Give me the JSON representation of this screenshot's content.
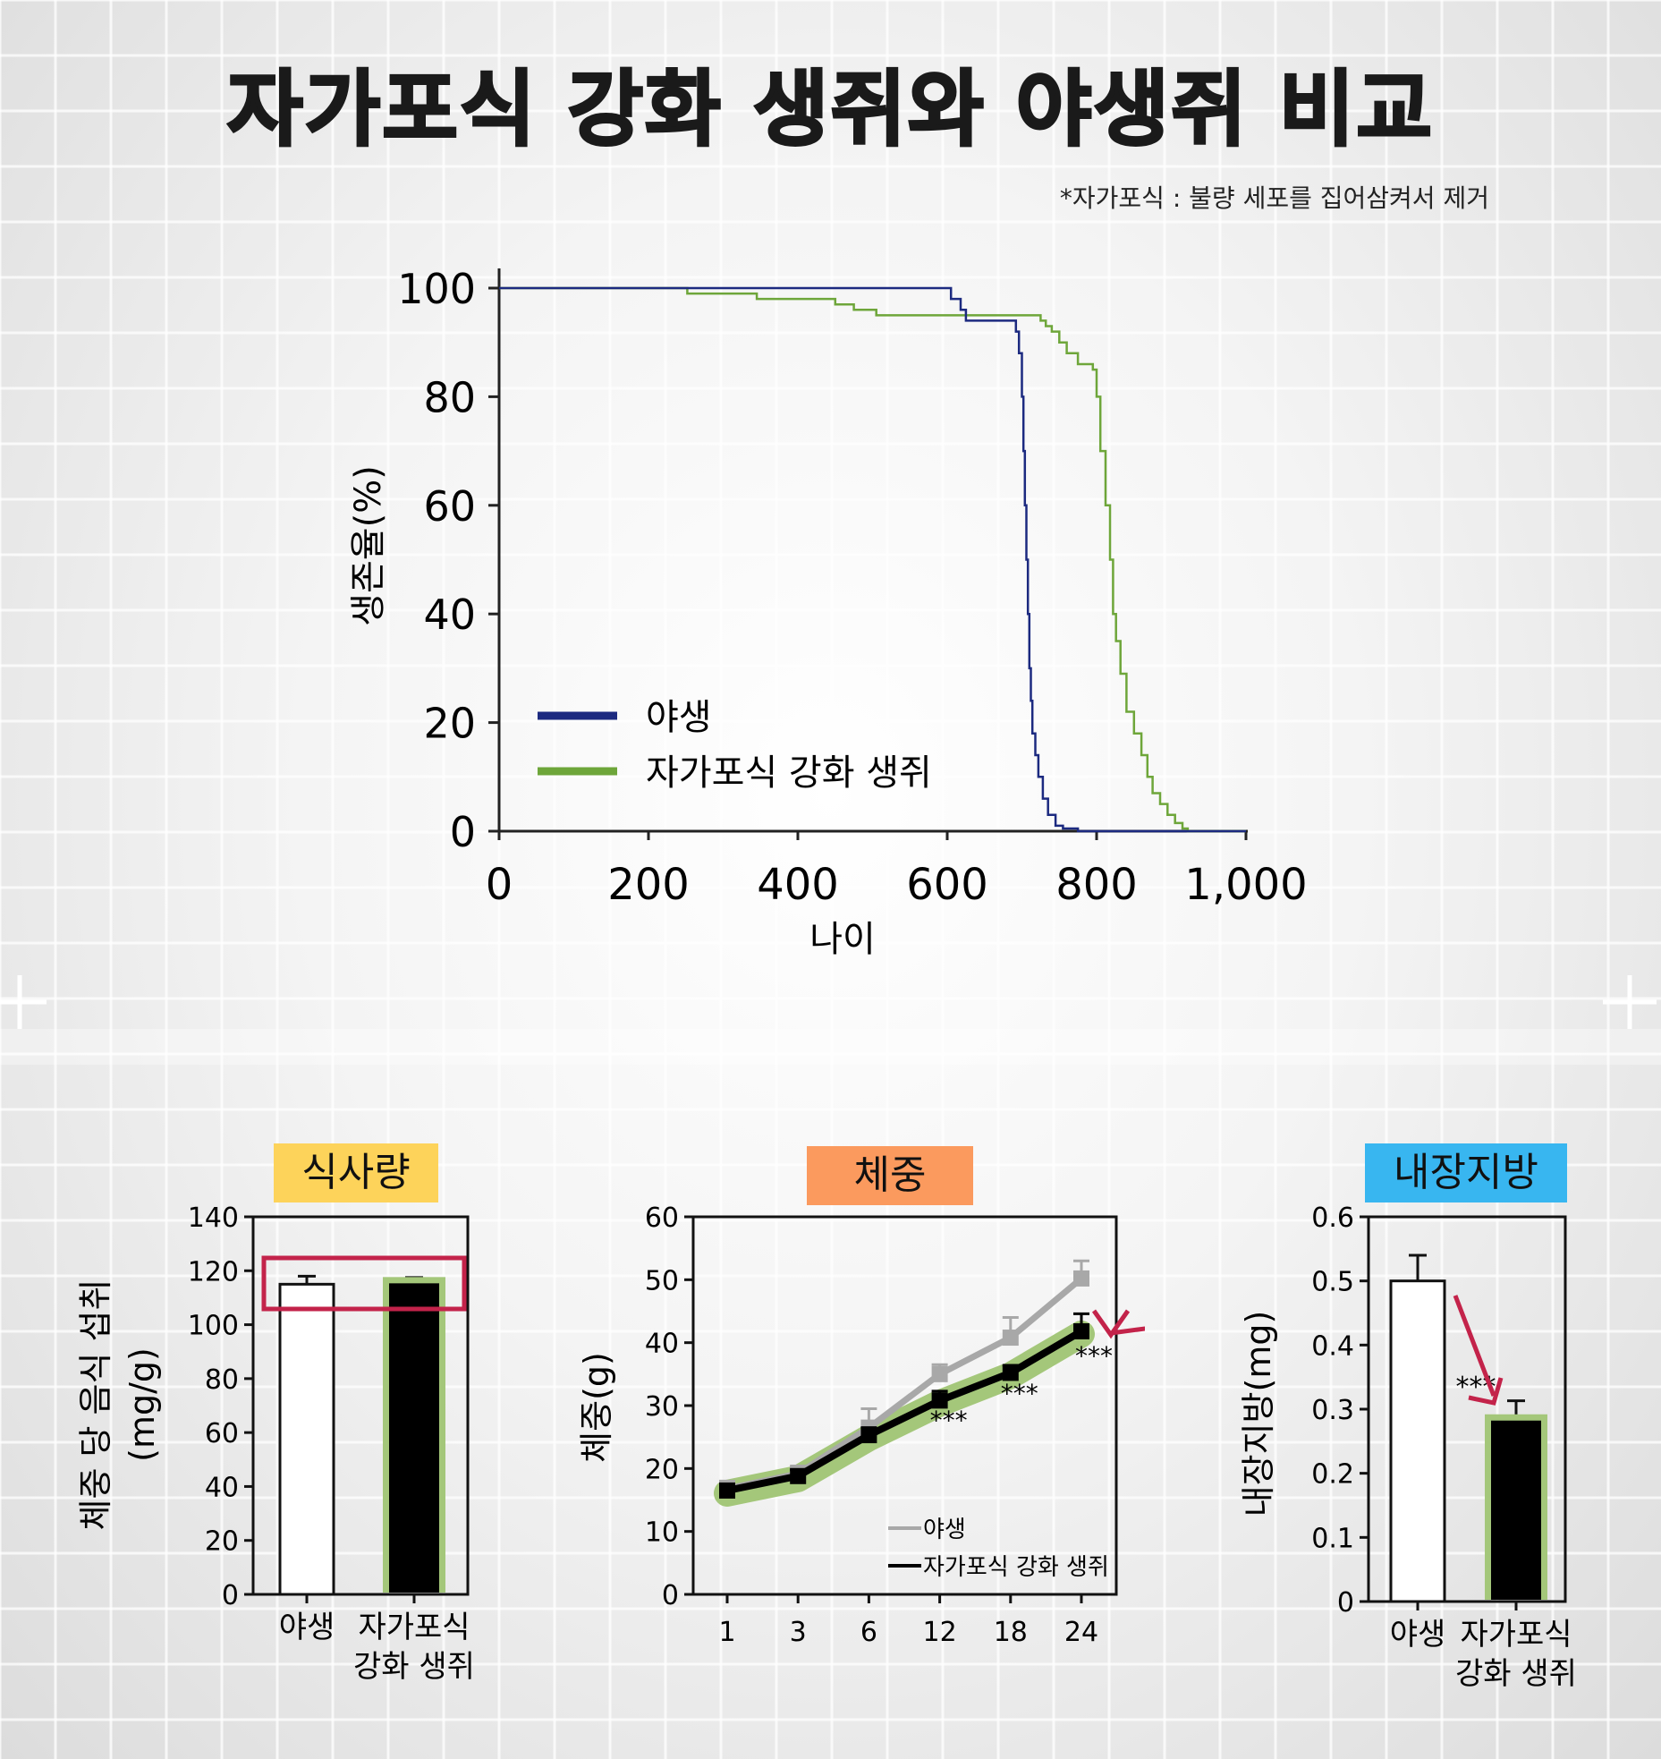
{
  "title": "자가포식 강화 생쥐와 야생쥐 비교",
  "footnote": "*자가포식 : 불량 세포를 집어삼켜서 제거",
  "colors": {
    "wild": "#1c2a80",
    "autophagy": "#6ea63a",
    "highlight_green": "#a4c77a",
    "arrow_red": "#c3234a",
    "label_food": "#fdd35a",
    "label_weight": "#fb9a5e",
    "label_fat": "#38b6f0"
  },
  "chart_data": [
    {
      "id": "survival",
      "type": "line",
      "xlabel": "나이",
      "ylabel": "생존율(%)",
      "xlim": [
        0,
        1000
      ],
      "ylim": [
        0,
        100
      ],
      "x_ticks": [
        "0",
        "200",
        "400",
        "600",
        "800",
        "1,000"
      ],
      "y_ticks": [
        "0",
        "20",
        "40",
        "60",
        "80",
        "100"
      ],
      "legend_position": "bottom-left",
      "series": [
        {
          "name": "야생",
          "color_key": "wild",
          "points": [
            [
              0,
              100
            ],
            [
              600,
              100
            ],
            [
              605,
              98
            ],
            [
              618,
              96
            ],
            [
              625,
              94
            ],
            [
              688,
              94
            ],
            [
              692,
              92
            ],
            [
              696,
              88
            ],
            [
              700,
              80
            ],
            [
              702,
              70
            ],
            [
              704,
              60
            ],
            [
              706,
              50
            ],
            [
              708,
              40
            ],
            [
              710,
              30
            ],
            [
              712,
              24
            ],
            [
              714,
              18
            ],
            [
              718,
              14
            ],
            [
              722,
              10
            ],
            [
              728,
              6
            ],
            [
              735,
              3
            ],
            [
              745,
              1
            ],
            [
              755,
              0.5
            ],
            [
              775,
              0
            ],
            [
              1000,
              0
            ]
          ]
        },
        {
          "name": "자가포식 강화 생쥐",
          "color_key": "autophagy",
          "points": [
            [
              0,
              100
            ],
            [
              248,
              100
            ],
            [
              252,
              99
            ],
            [
              340,
              99
            ],
            [
              345,
              98
            ],
            [
              445,
              98
            ],
            [
              450,
              97
            ],
            [
              470,
              97
            ],
            [
              475,
              96
            ],
            [
              500,
              96
            ],
            [
              505,
              95
            ],
            [
              720,
              95
            ],
            [
              725,
              94
            ],
            [
              732,
              93
            ],
            [
              740,
              92
            ],
            [
              750,
              90
            ],
            [
              760,
              88
            ],
            [
              775,
              86
            ],
            [
              795,
              85
            ],
            [
              800,
              80
            ],
            [
              805,
              70
            ],
            [
              812,
              60
            ],
            [
              818,
              50
            ],
            [
              822,
              40
            ],
            [
              826,
              35
            ],
            [
              832,
              29
            ],
            [
              840,
              22
            ],
            [
              850,
              18
            ],
            [
              860,
              14
            ],
            [
              868,
              10
            ],
            [
              875,
              7
            ],
            [
              885,
              5
            ],
            [
              895,
              3
            ],
            [
              905,
              1.5
            ],
            [
              915,
              0.5
            ],
            [
              922,
              0
            ],
            [
              1000,
              0
            ]
          ]
        }
      ]
    },
    {
      "id": "food-intake",
      "type": "bar",
      "label": "식사량",
      "ylabel": "체중 당 음식 섭취 (mg/g)",
      "ylabel_lines": [
        "체중 당 음식 섭취",
        "(mg/g)"
      ],
      "ylim": [
        0,
        140
      ],
      "y_ticks": [
        "0",
        "20",
        "40",
        "60",
        "80",
        "100",
        "120",
        "140"
      ],
      "categories": [
        "야생",
        "자가포식 강화 생쥐"
      ],
      "category_lines": [
        [
          "야생"
        ],
        [
          "자가포식",
          "강화 생쥐"
        ]
      ],
      "values": [
        115,
        116
      ],
      "errors": [
        3,
        1.5
      ]
    },
    {
      "id": "body-weight",
      "type": "line",
      "label": "체중",
      "ylabel": "체중(g)",
      "ylim": [
        0,
        60
      ],
      "y_ticks": [
        "0",
        "10",
        "20",
        "30",
        "40",
        "50",
        "60"
      ],
      "categories": [
        "1",
        "3",
        "6",
        "12",
        "18",
        "24"
      ],
      "annotation": "***",
      "legend_position": "bottom-right",
      "series": [
        {
          "name": "야생",
          "color": "#a8a8a8",
          "values": [
            16.8,
            19.2,
            26.5,
            35.0,
            40.8,
            50.2
          ],
          "errors": [
            1.2,
            1.2,
            3.0,
            1.5,
            3.2,
            2.8
          ]
        },
        {
          "name": "자가포식 강화 생쥐",
          "color": "#000000",
          "values": [
            16.5,
            18.8,
            25.3,
            30.8,
            35.2,
            41.8
          ],
          "errors": [
            1.0,
            1.0,
            1.2,
            1.5,
            1.2,
            2.8
          ]
        }
      ]
    },
    {
      "id": "visceral-fat",
      "type": "bar",
      "label": "내장지방",
      "ylabel": "내장지방(mg)",
      "ylim": [
        0,
        0.6
      ],
      "y_ticks": [
        "0",
        "0.1",
        "0.2",
        "0.3",
        "0.4",
        "0.5",
        "0.6"
      ],
      "categories": [
        "야생",
        "자가포식 강화 생쥐"
      ],
      "category_lines": [
        [
          "야생"
        ],
        [
          "자가포식",
          "강화 생쥐"
        ]
      ],
      "values": [
        0.5,
        0.285
      ],
      "errors": [
        0.04,
        0.028
      ],
      "annotation": "***"
    }
  ]
}
